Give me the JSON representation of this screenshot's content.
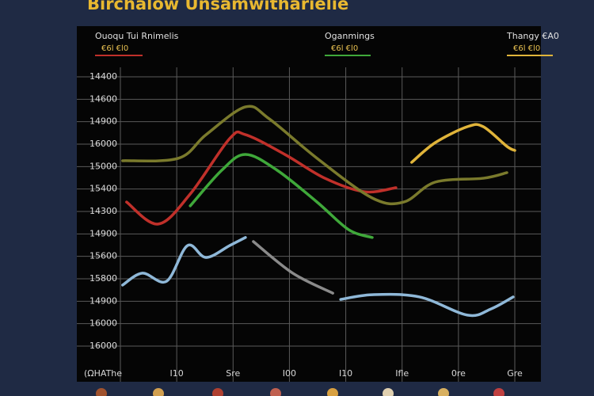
{
  "chart_data": {
    "type": "line",
    "title": "Birchalow Unsamwitharielie",
    "legend": "top",
    "grid": true,
    "xlim": [
      0,
      7
    ],
    "ylim": [
      0,
      12
    ],
    "xticks": [
      {
        "value": 0,
        "label": "(ΩHAThe"
      },
      {
        "value": 1,
        "label": "I10"
      },
      {
        "value": 2,
        "label": "Sre"
      },
      {
        "value": 3,
        "label": "I00"
      },
      {
        "value": 4,
        "label": "I10"
      },
      {
        "value": 5,
        "label": "Ifle"
      },
      {
        "value": 6,
        "label": "0re"
      },
      {
        "value": 7,
        "label": "Gre"
      }
    ],
    "yticks": [
      {
        "value": 0,
        "label": "16000"
      },
      {
        "value": 1,
        "label": "16000"
      },
      {
        "value": 2,
        "label": "14900"
      },
      {
        "value": 3,
        "label": "15800"
      },
      {
        "value": 4,
        "label": "15600"
      },
      {
        "value": 5,
        "label": "14900"
      },
      {
        "value": 6,
        "label": "14300"
      },
      {
        "value": 7,
        "label": "15400"
      },
      {
        "value": 8,
        "label": "15000"
      },
      {
        "value": 9,
        "label": "16000"
      },
      {
        "value": 10,
        "label": "14900"
      },
      {
        "value": 11,
        "label": "14600"
      },
      {
        "value": 12,
        "label": "14400"
      }
    ],
    "legend_subtitles": [
      "€6l €l0",
      "€6l €l0",
      "€6l €l0"
    ],
    "series": [
      {
        "name": "Ouoqu Tui Rnimelis",
        "color": "#c0302a",
        "x": [
          0.11,
          0.67,
          1.24,
          1.94,
          2.22,
          2.92,
          3.63,
          4.33,
          4.89
        ],
        "values": [
          6.42,
          5.44,
          6.78,
          9.25,
          9.42,
          8.54,
          7.48,
          6.88,
          7.06
        ]
      },
      {
        "name": "Oganmings",
        "color": "#3fa83a",
        "x": [
          1.24,
          1.8,
          2.22,
          2.78,
          3.49,
          4.05,
          4.47
        ],
        "values": [
          6.25,
          7.84,
          8.54,
          7.84,
          6.42,
          5.19,
          4.84
        ]
      },
      {
        "name": "Thangy €A0",
        "color": "#e0b43a",
        "x": [
          5.17,
          5.59,
          6.16,
          6.44,
          6.86,
          7.0
        ],
        "values": [
          8.19,
          9.07,
          9.78,
          9.78,
          8.9,
          8.72
        ]
      },
      {
        "color": "#7a7a2c",
        "x": [
          0.04,
          1.03,
          1.52,
          2.22,
          2.64,
          3.49,
          4.47,
          5.03,
          5.59,
          6.44,
          6.86
        ],
        "values": [
          8.26,
          8.37,
          9.42,
          10.66,
          10.13,
          8.37,
          6.6,
          6.42,
          7.31,
          7.48,
          7.73
        ]
      },
      {
        "color": "#8fb8d8",
        "x": [
          0.04,
          0.39,
          0.82,
          1.19,
          1.52,
          1.94,
          2.22,
          null,
          3.91,
          4.47,
          5.31,
          6.16,
          6.58,
          6.97
        ],
        "values": [
          2.72,
          3.25,
          2.89,
          4.48,
          3.95,
          4.48,
          4.84,
          null,
          2.08,
          2.29,
          2.19,
          1.38,
          1.66,
          2.19
        ]
      },
      {
        "color": "#8a8a8a",
        "x": [
          2.36,
          3.06,
          3.77
        ],
        "values": [
          4.66,
          3.25,
          2.36
        ]
      }
    ]
  }
}
